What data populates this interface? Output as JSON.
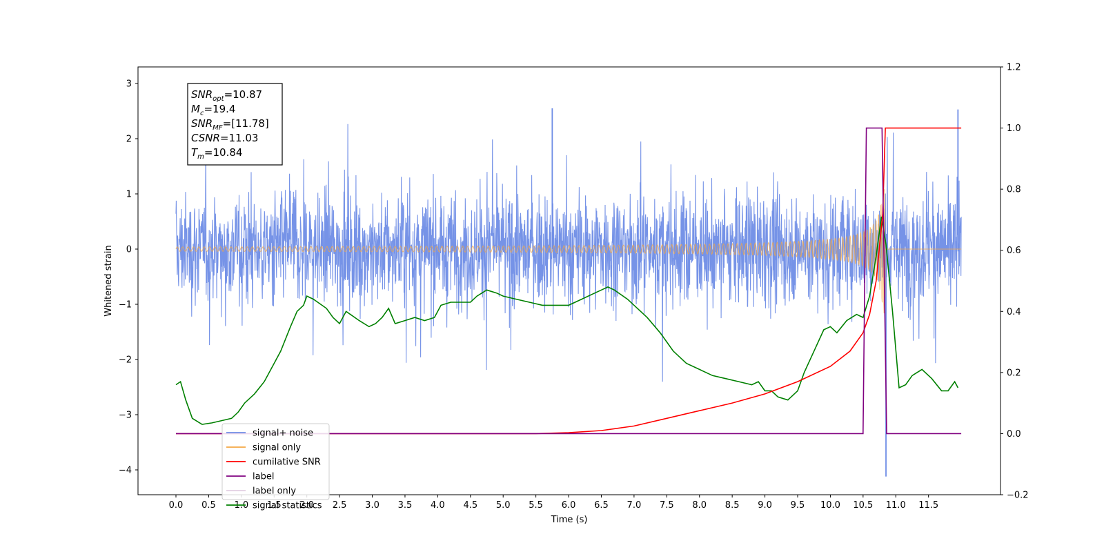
{
  "chart_data": {
    "type": "line",
    "xlabel": "Time (s)",
    "ylabel_left": "Whitened strain",
    "ylabel_right": "",
    "xlim": [
      -0.58,
      12.6
    ],
    "ylim_left": [
      -4.45,
      3.3
    ],
    "ylim_right": [
      -0.2,
      1.2
    ],
    "grid": false,
    "legend_position": "lower left",
    "x_ticks": [
      "0.0",
      "0.5",
      "1.0",
      "1.5",
      "2.0",
      "2.5",
      "3.0",
      "3.5",
      "4.0",
      "4.5",
      "5.0",
      "5.5",
      "6.0",
      "6.5",
      "7.0",
      "7.5",
      "8.0",
      "8.5",
      "9.0",
      "9.5",
      "10.0",
      "10.5",
      "11.0",
      "11.5"
    ],
    "y_ticks_left": [
      "3",
      "2",
      "1",
      "0",
      "−1",
      "−2",
      "−3",
      "−4"
    ],
    "y_ticks_right": [
      "1.2",
      "1.0",
      "0.8",
      "0.6",
      "0.4",
      "0.2",
      "0.0",
      "−0.2"
    ],
    "annotation": {
      "lines": [
        {
          "base": "SNR",
          "sub": "opt",
          "value": "=10.87"
        },
        {
          "base": "M",
          "sub": "c",
          "value": "=19.4"
        },
        {
          "base": "SNR",
          "sub": "MF",
          "value": "=[11.78]"
        },
        {
          "base": "CSNR",
          "sub": "",
          "value": "=11.03"
        },
        {
          "base": "T",
          "sub": "m",
          "value": "=10.84"
        }
      ]
    },
    "series": [
      {
        "name": "signal+ noise",
        "axis": "left",
        "color": "#6f8de6",
        "kind": "noise",
        "t_start": 0.0,
        "t_end": 12.0,
        "envelope_max": 2.55,
        "envelope_min": -2.7,
        "notable_points": [
          {
            "x": 10.85,
            "y": -4.12
          },
          {
            "x": 11.95,
            "y": 2.53
          },
          {
            "x": 5.75,
            "y": 2.55
          }
        ]
      },
      {
        "name": "signal only",
        "axis": "left",
        "color": "#f5a742",
        "kind": "chirp",
        "t_start": 0.0,
        "t_end": 12.0,
        "merger_time": 10.84,
        "peak_amplitude": 1.25
      },
      {
        "name": "cumilative SNR",
        "axis": "right",
        "color": "#ff0000",
        "x": [
          0.0,
          5.5,
          6.0,
          6.5,
          7.0,
          7.5,
          8.0,
          8.5,
          9.0,
          9.5,
          10.0,
          10.3,
          10.5,
          10.6,
          10.7,
          10.8,
          10.84,
          12.0
        ],
        "y": [
          0.0,
          0.0,
          0.003,
          0.01,
          0.025,
          0.05,
          0.075,
          0.1,
          0.13,
          0.17,
          0.22,
          0.27,
          0.33,
          0.39,
          0.5,
          0.72,
          1.0,
          1.0
        ]
      },
      {
        "name": "label",
        "axis": "right",
        "color": "#800080",
        "x": [
          0.0,
          10.5,
          10.55,
          10.79,
          10.86,
          12.0
        ],
        "y": [
          0.0,
          0.0,
          1.0,
          1.0,
          0.0,
          0.0
        ]
      },
      {
        "name": "label only",
        "axis": "right",
        "color": "#c8a0c8",
        "kind": "hidden"
      },
      {
        "name": "signal statistics",
        "axis": "right",
        "color": "#008000",
        "x": [
          0.0,
          0.07,
          0.15,
          0.25,
          0.4,
          0.55,
          0.75,
          0.85,
          0.95,
          1.05,
          1.2,
          1.35,
          1.5,
          1.6,
          1.75,
          1.85,
          1.95,
          2.0,
          2.1,
          2.3,
          2.4,
          2.5,
          2.6,
          2.8,
          2.95,
          3.05,
          3.15,
          3.25,
          3.35,
          3.5,
          3.65,
          3.8,
          3.95,
          4.05,
          4.2,
          4.35,
          4.5,
          4.6,
          4.75,
          4.9,
          5.0,
          5.2,
          5.4,
          5.6,
          5.8,
          6.0,
          6.2,
          6.4,
          6.5,
          6.6,
          6.7,
          6.9,
          7.0,
          7.2,
          7.4,
          7.6,
          7.8,
          8.0,
          8.2,
          8.4,
          8.6,
          8.8,
          8.9,
          9.0,
          9.1,
          9.2,
          9.35,
          9.5,
          9.6,
          9.75,
          9.9,
          10.0,
          10.1,
          10.25,
          10.4,
          10.5,
          10.6,
          10.7,
          10.78,
          10.85,
          10.95,
          11.05,
          11.15,
          11.25,
          11.4,
          11.55,
          11.7,
          11.8,
          11.9,
          11.95
        ],
        "y": [
          0.16,
          0.17,
          0.11,
          0.05,
          0.03,
          0.035,
          0.045,
          0.05,
          0.07,
          0.1,
          0.13,
          0.17,
          0.23,
          0.27,
          0.35,
          0.4,
          0.42,
          0.45,
          0.44,
          0.41,
          0.38,
          0.36,
          0.4,
          0.37,
          0.35,
          0.36,
          0.38,
          0.41,
          0.36,
          0.37,
          0.38,
          0.37,
          0.38,
          0.42,
          0.43,
          0.43,
          0.43,
          0.45,
          0.47,
          0.46,
          0.45,
          0.44,
          0.43,
          0.42,
          0.42,
          0.42,
          0.44,
          0.46,
          0.47,
          0.48,
          0.47,
          0.44,
          0.42,
          0.38,
          0.33,
          0.27,
          0.23,
          0.21,
          0.19,
          0.18,
          0.17,
          0.16,
          0.17,
          0.14,
          0.14,
          0.12,
          0.11,
          0.14,
          0.2,
          0.27,
          0.34,
          0.35,
          0.33,
          0.37,
          0.39,
          0.38,
          0.45,
          0.58,
          0.71,
          0.62,
          0.4,
          0.15,
          0.16,
          0.19,
          0.21,
          0.18,
          0.14,
          0.14,
          0.17,
          0.15
        ]
      }
    ]
  }
}
